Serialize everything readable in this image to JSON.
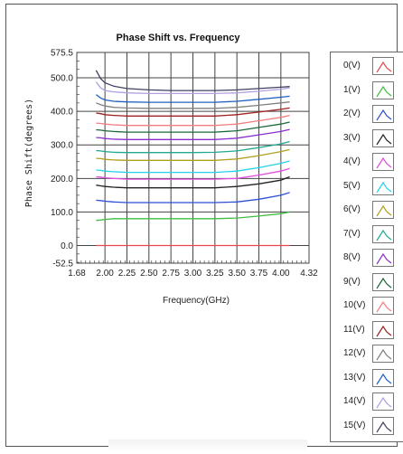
{
  "chart_data": {
    "type": "line",
    "title": "Phase Shift vs. Frequency",
    "xlabel": "Frequency(GHz)",
    "ylabel": "Phase Shift(degrees)",
    "xlim": [
      1.68,
      4.32
    ],
    "ylim": [
      -52.5,
      575.5
    ],
    "x_ticks": [
      "1.68",
      "2.00",
      "2.25",
      "2.50",
      "2.75",
      "3.00",
      "3.25",
      "3.50",
      "3.75",
      "4.00",
      "4.32"
    ],
    "y_ticks": [
      "575.5",
      "500.0",
      "400.0",
      "300.0",
      "200.0",
      "100.0",
      "0.0",
      "-52.5"
    ],
    "grid": true,
    "legend_position": "right",
    "x": [
      1.9,
      1.95,
      2.0,
      2.1,
      2.25,
      2.5,
      2.75,
      3.0,
      3.25,
      3.5,
      3.75,
      4.0,
      4.1
    ],
    "series": [
      {
        "name": "0(V)",
        "color": "#e8484a",
        "values": [
          0,
          0,
          0,
          0,
          0,
          0,
          0,
          0,
          0,
          0,
          0,
          0,
          0
        ]
      },
      {
        "name": "1(V)",
        "color": "#3fbf3f",
        "values": [
          75,
          76,
          78,
          80,
          80,
          80,
          80,
          80,
          80,
          82,
          88,
          95,
          100
        ]
      },
      {
        "name": "2(V)",
        "color": "#2e4fd6",
        "values": [
          135,
          134,
          132,
          130,
          128,
          128,
          128,
          128,
          128,
          130,
          138,
          150,
          158
        ]
      },
      {
        "name": "3(V)",
        "color": "#222222",
        "values": [
          180,
          178,
          176,
          174,
          172,
          172,
          172,
          172,
          172,
          176,
          184,
          195,
          205
        ]
      },
      {
        "name": "4(V)",
        "color": "#e04ce0",
        "values": [
          205,
          204,
          202,
          200,
          198,
          198,
          198,
          198,
          198,
          200,
          210,
          222,
          230
        ]
      },
      {
        "name": "5(V)",
        "color": "#22d4e8",
        "values": [
          225,
          224,
          222,
          220,
          218,
          218,
          218,
          218,
          218,
          222,
          232,
          245,
          252
        ]
      },
      {
        "name": "6(V)",
        "color": "#b0a020",
        "values": [
          260,
          259,
          257,
          255,
          254,
          254,
          254,
          254,
          254,
          258,
          268,
          280,
          286
        ]
      },
      {
        "name": "7(V)",
        "color": "#20a890",
        "values": [
          283,
          282,
          280,
          278,
          277,
          277,
          277,
          277,
          278,
          282,
          292,
          303,
          310
        ]
      },
      {
        "name": "8(V)",
        "color": "#8a2ed0",
        "values": [
          322,
          321,
          319,
          317,
          316,
          316,
          316,
          316,
          316,
          320,
          330,
          340,
          346
        ]
      },
      {
        "name": "9(V)",
        "color": "#1a6a3a",
        "values": [
          345,
          344,
          342,
          340,
          338,
          338,
          338,
          338,
          338,
          342,
          352,
          362,
          368
        ]
      },
      {
        "name": "10(V)",
        "color": "#f08080",
        "values": [
          365,
          364,
          362,
          360,
          358,
          358,
          358,
          358,
          358,
          362,
          372,
          382,
          388
        ]
      },
      {
        "name": "11(V)",
        "color": "#a02020",
        "values": [
          395,
          393,
          390,
          388,
          386,
          386,
          386,
          386,
          386,
          390,
          398,
          406,
          410
        ]
      },
      {
        "name": "12(V)",
        "color": "#808080",
        "values": [
          425,
          420,
          416,
          412,
          410,
          409,
          409,
          409,
          409,
          412,
          418,
          425,
          428
        ]
      },
      {
        "name": "13(V)",
        "color": "#2060c0",
        "values": [
          450,
          440,
          434,
          430,
          428,
          427,
          427,
          427,
          427,
          430,
          436,
          442,
          445
        ]
      },
      {
        "name": "14(V)",
        "color": "#b0a0e0",
        "values": [
          488,
          470,
          462,
          458,
          455,
          453,
          453,
          453,
          453,
          455,
          460,
          466,
          470
        ]
      },
      {
        "name": "15(V)",
        "color": "#404060",
        "values": [
          522,
          498,
          485,
          475,
          468,
          464,
          462,
          462,
          462,
          464,
          468,
          472,
          474
        ]
      }
    ]
  }
}
